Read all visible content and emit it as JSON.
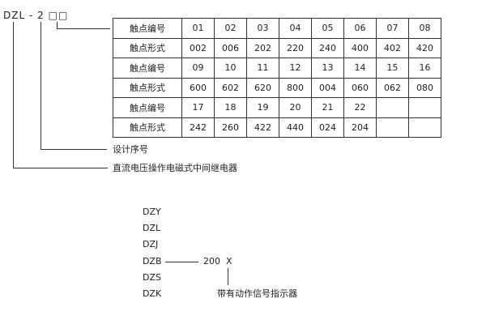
{
  "code": {
    "prefix": "DZL",
    "dash": "-",
    "digit": "2",
    "boxes": "□□"
  },
  "table": {
    "rows": [
      [
        "触点编号",
        "01",
        "02",
        "03",
        "04",
        "05",
        "06",
        "07",
        "08"
      ],
      [
        "触点形式",
        "002",
        "006",
        "202",
        "220",
        "240",
        "400",
        "402",
        "420"
      ],
      [
        "触点编号",
        "09",
        "10",
        "11",
        "12",
        "13",
        "14",
        "15",
        "16"
      ],
      [
        "触点形式",
        "600",
        "602",
        "620",
        "800",
        "004",
        "060",
        "062",
        "080"
      ],
      [
        "触点编号",
        "17",
        "18",
        "19",
        "20",
        "21",
        "22",
        "",
        ""
      ],
      [
        "触点形式",
        "242",
        "260",
        "422",
        "440",
        "024",
        "204",
        "",
        ""
      ]
    ]
  },
  "labels": {
    "design": "设计序号",
    "type": "直流电压操作电磁式中间继电器"
  },
  "series": {
    "items": [
      "DZY",
      "DZL",
      "DZJ",
      "DZB",
      "DZS",
      "DZK"
    ],
    "suffix": "200",
    "x": "X",
    "indicator": "带有动作信号指示器"
  }
}
